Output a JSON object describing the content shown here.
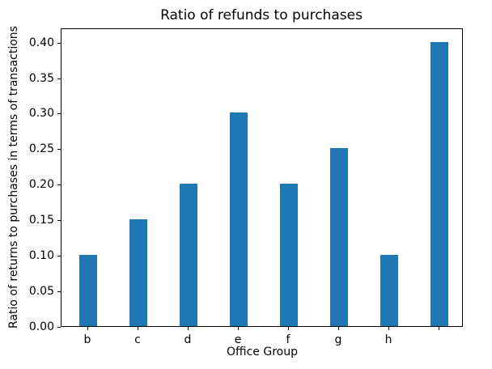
{
  "chart_data": {
    "type": "bar",
    "title": "Ratio of refunds to purchases",
    "xlabel": "Office Group",
    "ylabel": "Ratio of returns to purchases in terms of transactions",
    "categories": [
      "b",
      "c",
      "d",
      "e",
      "f",
      "g",
      "h",
      ""
    ],
    "values": [
      0.1,
      0.15,
      0.2,
      0.3,
      0.2,
      0.25,
      0.1,
      0.4
    ],
    "yticks": [
      "0.00",
      "0.05",
      "0.10",
      "0.15",
      "0.20",
      "0.25",
      "0.30",
      "0.35",
      "0.40"
    ],
    "ylim": [
      0,
      0.42
    ],
    "bar_color": "#1f77b4",
    "axis_color": "#000000",
    "text_color": "#000000",
    "background_color": "#ffffff",
    "grid": false,
    "legend_position": "none"
  }
}
